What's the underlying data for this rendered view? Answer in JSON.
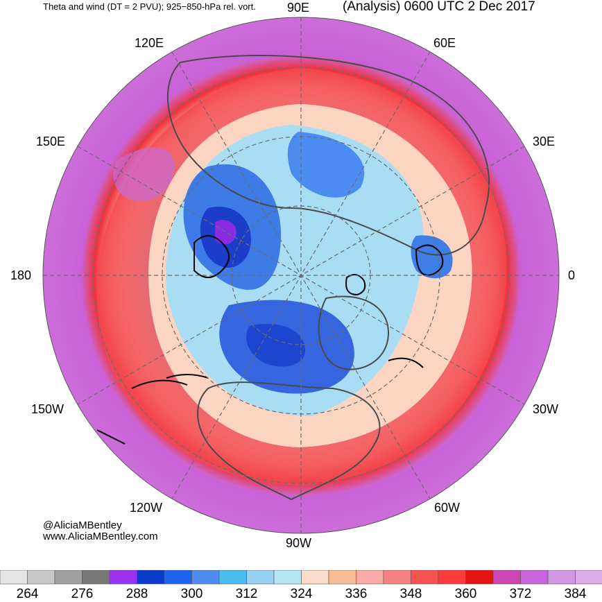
{
  "header": {
    "subtitle": "Theta and wind (DT = 2 PVU); 925−850-hPa rel. vort.",
    "title": "(Analysis) 0600 UTC 2 Dec 2017"
  },
  "map": {
    "projection": "north-polar-stereographic",
    "longitude_labels": {
      "lon_90e": "90E",
      "lon_120e": "120E",
      "lon_60e": "60E",
      "lon_150e": "150E",
      "lon_30e": "30E",
      "lon_180": "180",
      "lon_0": "0",
      "lon_150w": "150W",
      "lon_30w": "30W",
      "lon_120w": "120W",
      "lon_60w": "60W",
      "lon_90w": "90W"
    },
    "colors": {
      "ring_outer": "#c96ad9",
      "ring_red": "#f0323a",
      "ring_orange": "#fca8a0",
      "ring_peach": "#fbd9c8",
      "inner_light_blue": "#a7dcf3",
      "inner_blue": "#3f7ee6",
      "inner_dark_blue": "#1a3fcc",
      "core_purple": "#8a2be2",
      "coastline": "#4a4a4a",
      "vorticity": "#000000"
    }
  },
  "credit": {
    "handle": "@AliciaMBentley",
    "website": "www.AliciaMBentley.com"
  },
  "colorbar": {
    "unit_note": "",
    "colors": [
      "#e6e6e6",
      "#c8c8c8",
      "#a0a0a0",
      "#787878",
      "#9a30f0",
      "#0a3acb",
      "#1e64f0",
      "#4f8df3",
      "#4cbbee",
      "#96d2f5",
      "#b4e6f5",
      "#fadcc8",
      "#fabe96",
      "#fcaaa6",
      "#f88282",
      "#f95050",
      "#fa3c3c",
      "#e61414",
      "#cd46b4",
      "#c864dc",
      "#d296e6",
      "#dcaae6"
    ],
    "labels": [
      "264",
      "276",
      "288",
      "300",
      "312",
      "324",
      "336",
      "348",
      "360",
      "372",
      "384"
    ]
  }
}
